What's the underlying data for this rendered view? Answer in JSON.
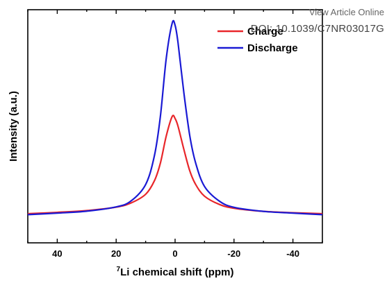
{
  "watermark": {
    "line1": "View Article Online",
    "line2": "DOI: 10.1039/C7NR03017G"
  },
  "chart_data": {
    "type": "line",
    "xlabel_superscript": "7",
    "xlabel": "Li chemical shift (ppm)",
    "ylabel": "Intensity (a.u.)",
    "xlim": [
      50,
      -50
    ],
    "ylim": [
      -0.15,
      1.05
    ],
    "x_ticks": [
      40,
      20,
      0,
      -20,
      -40
    ],
    "x_reversed": true,
    "grid": false,
    "legend_position": "top-right",
    "series": [
      {
        "name": "Charge",
        "color": "#e8262a",
        "x": [
          50,
          40,
          30,
          20,
          15,
          10,
          7,
          5,
          3,
          1,
          0,
          -1,
          -3,
          -5,
          -7,
          -10,
          -15,
          -20,
          -30,
          -40,
          -50
        ],
        "y": [
          0.0,
          0.007,
          0.016,
          0.034,
          0.055,
          0.1,
          0.17,
          0.26,
          0.4,
          0.5,
          0.49,
          0.45,
          0.33,
          0.22,
          0.15,
          0.09,
          0.048,
          0.028,
          0.012,
          0.005,
          0.0
        ]
      },
      {
        "name": "Discharge",
        "color": "#1a1ad4",
        "x": [
          50,
          40,
          30,
          20,
          15,
          10,
          7,
          5,
          3,
          1,
          0,
          -1,
          -3,
          -5,
          -7,
          -10,
          -15,
          -20,
          -30,
          -40,
          -50
        ],
        "y": [
          -0.005,
          0.003,
          0.013,
          0.035,
          0.065,
          0.15,
          0.3,
          0.5,
          0.8,
          0.98,
          0.97,
          0.88,
          0.62,
          0.4,
          0.26,
          0.14,
          0.065,
          0.033,
          0.012,
          0.003,
          -0.005
        ]
      }
    ]
  }
}
